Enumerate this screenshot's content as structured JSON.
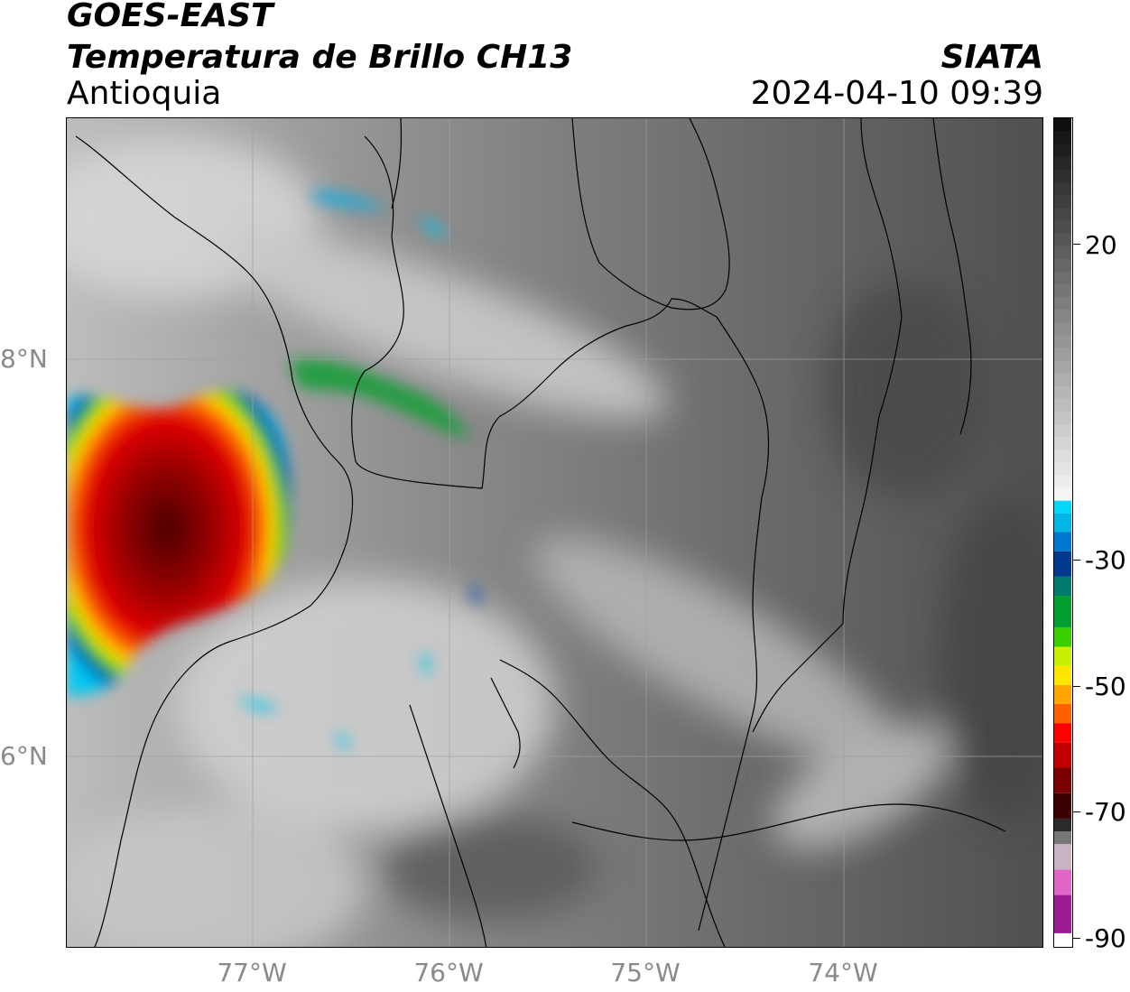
{
  "header": {
    "satellite": "GOES-EAST",
    "product": "Temperatura de Brillo CH13",
    "region": "Antioquia",
    "agency": "SIATA",
    "timestamp": "2024-04-10 09:39"
  },
  "map": {
    "lat_labels": [
      {
        "label": "8°N",
        "lat": 8
      },
      {
        "label": "6°N",
        "lat": 6
      }
    ],
    "lon_labels": [
      {
        "label": "77°W",
        "lon": -77
      },
      {
        "label": "76°W",
        "lon": -76
      },
      {
        "label": "75°W",
        "lon": -75
      },
      {
        "label": "74°W",
        "lon": -74
      }
    ],
    "extent": {
      "lon_min": -77.95,
      "lon_max": -73.0,
      "lat_min": 4.95,
      "lat_max": 9.15
    },
    "gridlines": true
  },
  "colorbar": {
    "ticks": [
      "20",
      "-30",
      "-50",
      "-70",
      "-90"
    ],
    "tick_values": [
      20,
      -30,
      -50,
      -70,
      -90
    ],
    "range": [
      -90,
      40
    ],
    "unit_hint": "",
    "palette": [
      "#ffffff",
      "#9b1c93",
      "#e067c7",
      "#c9b3c2",
      "#2a2a2a",
      "#7a0000",
      "#ff0000",
      "#ffa500",
      "#ffff00",
      "#00cc00",
      "#003a8c",
      "#00b7e6",
      "#f2f2f2",
      "#111111"
    ]
  }
}
